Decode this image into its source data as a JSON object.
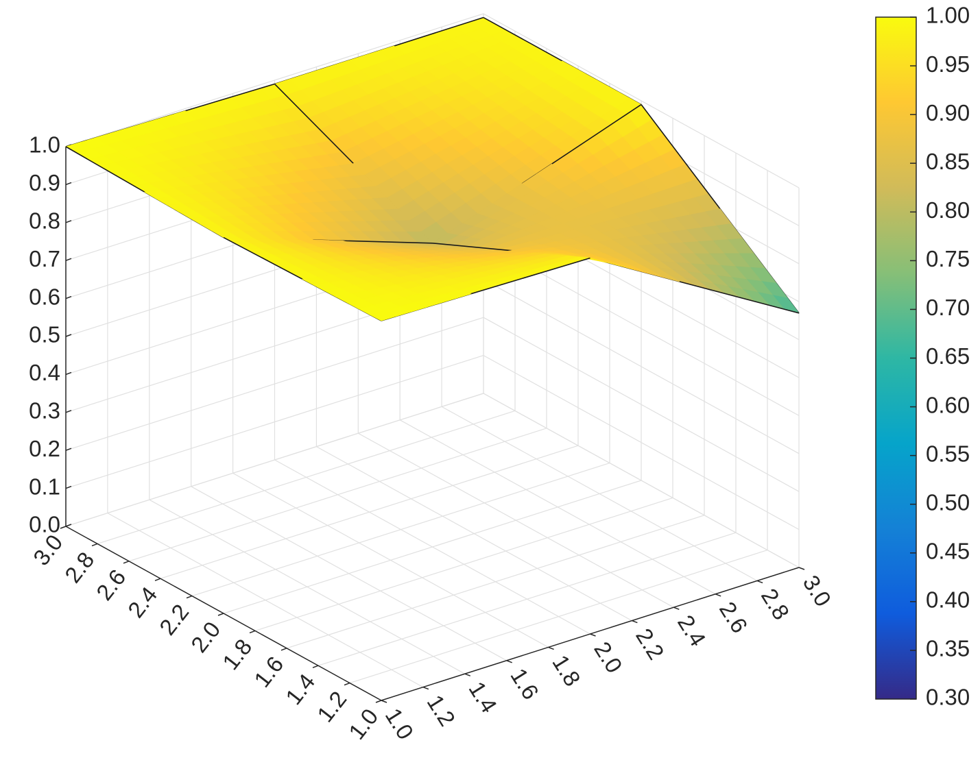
{
  "chart_data": {
    "type": "surface",
    "x": [
      1,
      2,
      3
    ],
    "y": [
      1,
      2,
      3
    ],
    "z": [
      [
        1.0,
        0.99,
        0.67
      ],
      [
        0.99,
        0.8,
        0.99
      ],
      [
        1.0,
        0.99,
        0.99
      ]
    ],
    "xlim": [
      1,
      3
    ],
    "ylim": [
      1,
      3
    ],
    "zlim": [
      0,
      1
    ],
    "xticks": [
      {
        "value": 1,
        "label": "1.0"
      },
      1.2,
      1.4,
      1.6,
      1.8,
      {
        "value": 2,
        "label": "2.0"
      },
      2.2,
      2.4,
      2.6,
      2.8,
      {
        "value": 3,
        "label": "3.0"
      }
    ],
    "yticks": [
      {
        "value": 1,
        "label": "1.0"
      },
      1.2,
      1.4,
      1.6,
      1.8,
      {
        "value": 2,
        "label": "2.0"
      },
      2.2,
      2.4,
      2.6,
      2.8,
      {
        "value": 3,
        "label": "3.0"
      }
    ],
    "zticks": [
      {
        "value": 0,
        "label": "0.0"
      },
      0.1,
      0.2,
      0.3,
      0.4,
      0.5,
      0.6,
      0.7,
      0.8,
      0.9,
      {
        "value": 1,
        "label": "1.0"
      }
    ],
    "clim": [
      0.3,
      1.0
    ],
    "cticks": [
      {
        "value": 0.3,
        "label": "0.30"
      },
      0.35,
      {
        "value": 0.4,
        "label": "0.40"
      },
      0.45,
      {
        "value": 0.5,
        "label": "0.50"
      },
      0.55,
      {
        "value": 0.6,
        "label": "0.60"
      },
      0.65,
      {
        "value": 0.7,
        "label": "0.70"
      },
      0.75,
      {
        "value": 0.8,
        "label": "0.80"
      },
      0.85,
      {
        "value": 0.9,
        "label": "0.90"
      },
      0.95,
      {
        "value": 1.0,
        "label": "1.00"
      }
    ],
    "colormap": [
      "#352a87",
      "#0f5cdd",
      "#1481d6",
      "#06a4ca",
      "#2eb7a4",
      "#87bf77",
      "#d1bb59",
      "#fec832",
      "#f9fb0e"
    ],
    "grid": true,
    "colorbar": true
  }
}
